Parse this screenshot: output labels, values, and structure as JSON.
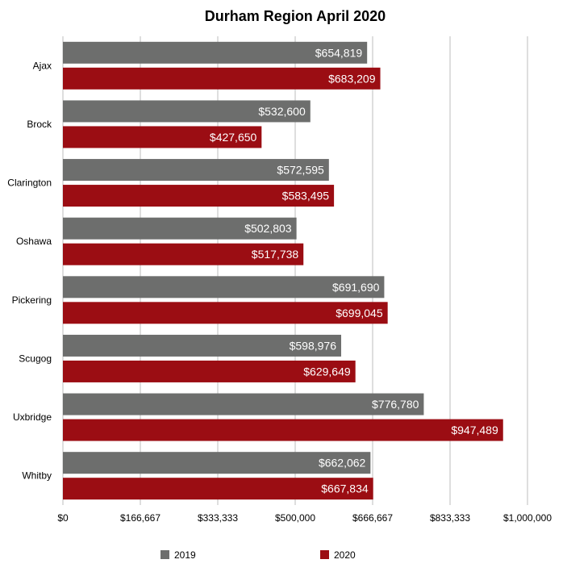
{
  "chart_data": {
    "type": "bar",
    "orientation": "horizontal",
    "title": "Durham Region April 2020",
    "categories": [
      "Ajax",
      "Brock",
      "Clarington",
      "Oshawa",
      "Pickering",
      "Scugog",
      "Uxbridge",
      "Whitby"
    ],
    "series": [
      {
        "name": "2019",
        "color": "#6d6e6d",
        "values": [
          654819,
          532600,
          572595,
          502803,
          691690,
          598976,
          776780,
          662062
        ],
        "labels": [
          "$654,819",
          "$532,600",
          "$572,595",
          "$502,803",
          "$691,690",
          "$598,976",
          "$776,780",
          "$662,062"
        ]
      },
      {
        "name": "2020",
        "color": "#9b0d13",
        "values": [
          683209,
          427650,
          583495,
          517738,
          699045,
          629649,
          947489,
          667834
        ],
        "labels": [
          "$683,209",
          "$427,650",
          "$583,495",
          "$517,738",
          "$699,045",
          "$629,649",
          "$947,489",
          "$667,834"
        ]
      }
    ],
    "xlim": [
      0,
      1000000
    ],
    "xticks": [
      0,
      166667,
      333333,
      500000,
      666667,
      833333,
      1000000
    ],
    "xtick_labels": [
      "$0",
      "$166,667",
      "$333,333",
      "$500,000",
      "$666,667",
      "$833,333",
      "$1,000,000"
    ],
    "grid": true,
    "legend_position": "bottom",
    "xlabel": "",
    "ylabel": ""
  }
}
